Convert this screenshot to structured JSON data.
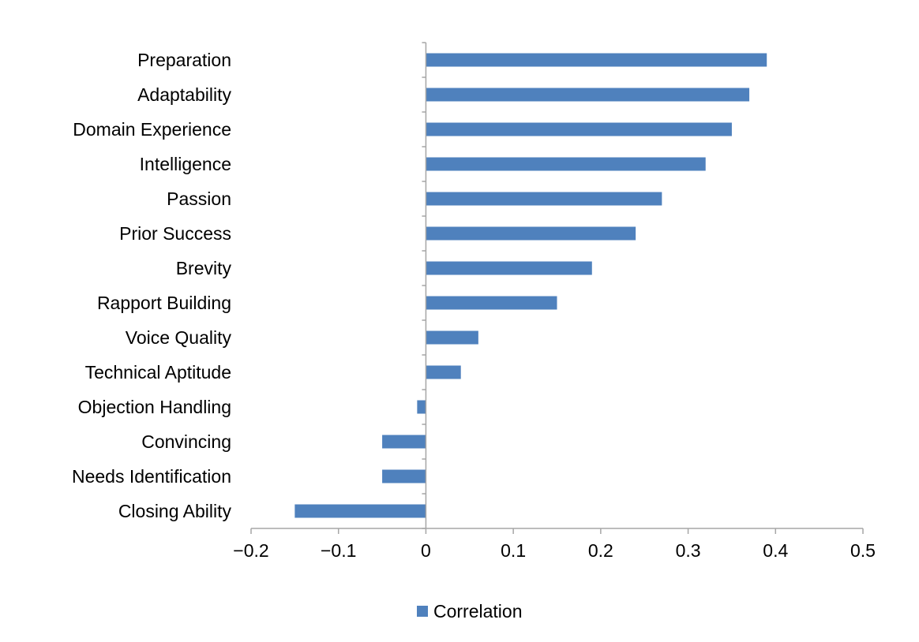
{
  "chart_data": {
    "type": "bar",
    "orientation": "horizontal",
    "categories": [
      "Preparation",
      "Adaptability",
      "Domain Experience",
      "Intelligence",
      "Passion",
      "Prior Success",
      "Brevity",
      "Rapport Building",
      "Voice Quality",
      "Technical Aptitude",
      "Objection Handling",
      "Convincing",
      "Needs Identification",
      "Closing Ability"
    ],
    "series": [
      {
        "name": "Correlation",
        "color": "#4f81bd",
        "values": [
          0.39,
          0.37,
          0.35,
          0.32,
          0.27,
          0.24,
          0.19,
          0.15,
          0.06,
          0.04,
          -0.01,
          -0.05,
          -0.05,
          -0.15
        ]
      }
    ],
    "xlim": [
      -0.2,
      0.5
    ],
    "xticks": [
      -0.2,
      -0.1,
      0,
      0.1,
      0.2,
      0.3,
      0.4,
      0.5
    ],
    "xtick_labels": [
      "−0.2",
      "−0.1",
      "0",
      "0.1",
      "0.2",
      "0.3",
      "0.4",
      "0.5"
    ],
    "title": "",
    "xlabel": "",
    "ylabel": "",
    "grid": false,
    "legend": {
      "position": "bottom",
      "entries": [
        "Correlation"
      ]
    }
  }
}
